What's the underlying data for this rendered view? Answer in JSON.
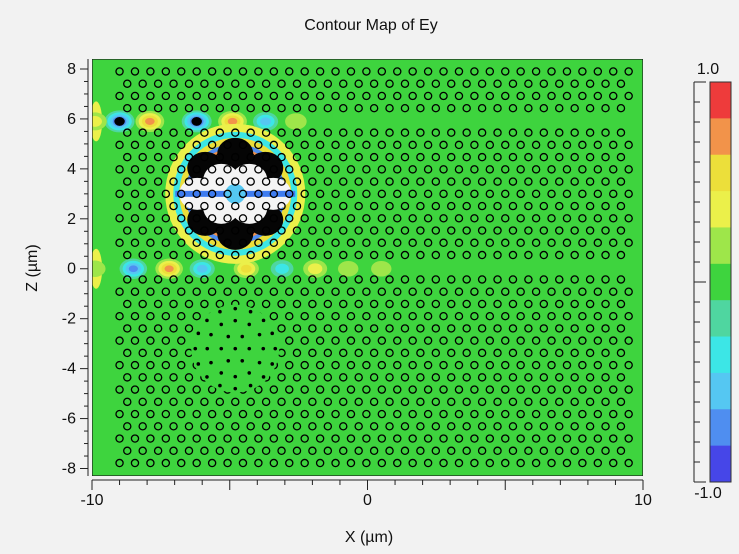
{
  "chart_data": {
    "type": "heatmap",
    "title": "Contour Map of Ey",
    "xlabel": "X (µm)",
    "ylabel": "Z (µm)",
    "xlim": [
      -10,
      10
    ],
    "ylim": [
      -8.3,
      8.4
    ],
    "x_ticks": [
      -10,
      0,
      10
    ],
    "x_tick_labels": [
      "-10",
      "0",
      "10"
    ],
    "y_ticks": [
      8,
      6,
      4,
      2,
      0,
      -2,
      -4,
      -6,
      -8
    ],
    "y_tick_labels": [
      "8",
      "6",
      "4",
      "2",
      "0",
      "-2",
      "-4",
      "-6",
      "-8"
    ],
    "background_value": 0.0,
    "colorbar": {
      "max_label": "1.0",
      "min_label": "-1.0",
      "levels": [
        {
          "value": 0.9,
          "color": "#ee3b3b"
        },
        {
          "value": 0.7,
          "color": "#f2934a"
        },
        {
          "value": 0.5,
          "color": "#ecdf3a"
        },
        {
          "value": 0.3,
          "color": "#ebf04a"
        },
        {
          "value": 0.1,
          "color": "#9ee64a"
        },
        {
          "value": -0.1,
          "color": "#3ed43e"
        },
        {
          "value": -0.3,
          "color": "#4fd6a0"
        },
        {
          "value": -0.5,
          "color": "#3ce6e6"
        },
        {
          "value": -0.7,
          "color": "#55c7f2"
        },
        {
          "value": -0.9,
          "color": "#4f8ef0"
        },
        {
          "value": -1.0,
          "color": "#4646e8"
        }
      ]
    },
    "hole_lattice": {
      "x_start": -9.0,
      "x_end": 9.7,
      "x_step": 0.56,
      "z_start": -8.0,
      "z_end": 7.9,
      "z_step": 0.49,
      "removed_rows_z": [
        5.9,
        0.0
      ],
      "hole_radius_um": 0.13
    },
    "field_features": [
      {
        "name": "upper waveguide mode",
        "z": 5.9,
        "lobes": [
          {
            "x": -9.0,
            "e": -1.0
          },
          {
            "x": -7.9,
            "e": 0.9
          },
          {
            "x": -6.2,
            "e": -1.0
          },
          {
            "x": -4.9,
            "e": 0.9
          },
          {
            "x": -3.7,
            "e": -0.6
          },
          {
            "x": -2.6,
            "e": 0.3
          },
          {
            "x": -9.9,
            "e": 0.5
          }
        ]
      },
      {
        "name": "lower waveguide mode",
        "z": 0.0,
        "lobes": [
          {
            "x": -8.5,
            "e": -0.8
          },
          {
            "x": -7.2,
            "e": 0.8
          },
          {
            "x": -6.0,
            "e": -0.6
          },
          {
            "x": -4.4,
            "e": 0.6
          },
          {
            "x": -3.1,
            "e": -0.4
          },
          {
            "x": -1.9,
            "e": 0.5
          },
          {
            "x": -0.7,
            "e": 0.2
          },
          {
            "x": 0.5,
            "e": 0.2
          },
          {
            "x": -9.9,
            "e": 0.3
          }
        ]
      },
      {
        "name": "cavity mode",
        "center_x": -4.8,
        "center_z": 3.0,
        "peak": 1.0,
        "petals": 6
      },
      {
        "name": "point defect cluster",
        "center_x": -4.8,
        "center_z": -3.2
      }
    ]
  }
}
